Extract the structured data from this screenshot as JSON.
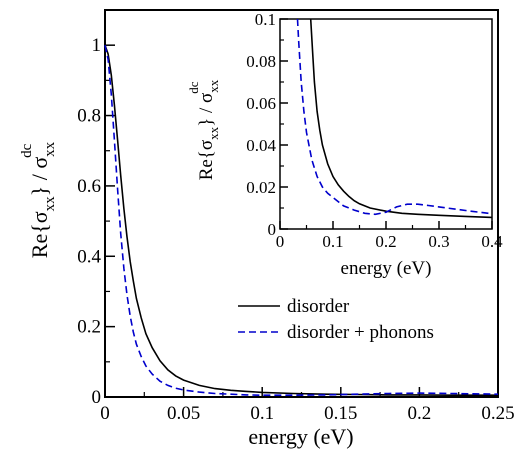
{
  "chart_data": [
    {
      "type": "line",
      "title": "",
      "xlabel": "energy (eV)",
      "ylabel": {
        "prefix": "Re{σ",
        "sub": "xx",
        "mid": "} / σ",
        "sub2": "xx",
        "sup": "dc"
      },
      "xlim": [
        0,
        0.25
      ],
      "ylim": [
        0,
        1.1
      ],
      "x_ticks": [
        "0",
        "0.05",
        "0.1",
        "0.15",
        "0.2",
        "0.25"
      ],
      "y_ticks": [
        "0",
        "0.2",
        "0.4",
        "0.6",
        "0.8",
        "1"
      ],
      "grid": false,
      "legend_position": "center-right",
      "series": [
        {
          "name": "disorder",
          "color": "#000000",
          "style": "solid",
          "x": [
            0,
            0.002,
            0.004,
            0.006,
            0.008,
            0.01,
            0.012,
            0.014,
            0.016,
            0.018,
            0.02,
            0.023,
            0.026,
            0.03,
            0.035,
            0.04,
            0.045,
            0.05,
            0.06,
            0.07,
            0.08,
            0.09,
            0.1,
            0.12,
            0.14,
            0.16,
            0.18,
            0.2,
            0.22,
            0.25
          ],
          "y": [
            1.0,
            0.975,
            0.915,
            0.83,
            0.73,
            0.63,
            0.535,
            0.455,
            0.385,
            0.33,
            0.28,
            0.225,
            0.18,
            0.14,
            0.103,
            0.077,
            0.06,
            0.048,
            0.033,
            0.024,
            0.019,
            0.016,
            0.013,
            0.01,
            0.008,
            0.007,
            0.006,
            0.006,
            0.005,
            0.005
          ]
        },
        {
          "name": "disorder + phonons",
          "color": "#0000cc",
          "style": "dashed",
          "x": [
            0,
            0.002,
            0.004,
            0.006,
            0.008,
            0.01,
            0.012,
            0.014,
            0.016,
            0.018,
            0.02,
            0.023,
            0.026,
            0.03,
            0.035,
            0.04,
            0.045,
            0.05,
            0.06,
            0.07,
            0.08,
            0.09,
            0.1,
            0.12,
            0.14,
            0.16,
            0.18,
            0.2,
            0.22,
            0.25
          ],
          "y": [
            1.0,
            0.96,
            0.86,
            0.73,
            0.59,
            0.465,
            0.365,
            0.29,
            0.23,
            0.185,
            0.15,
            0.115,
            0.088,
            0.065,
            0.045,
            0.033,
            0.025,
            0.02,
            0.014,
            0.01,
            0.008,
            0.006,
            0.005,
            0.005,
            0.006,
            0.008,
            0.01,
            0.011,
            0.01,
            0.008
          ]
        }
      ]
    },
    {
      "type": "line",
      "title": "",
      "xlabel": "energy (eV)",
      "ylabel": {
        "prefix": "Re{σ",
        "sub": "xx",
        "mid": "} / σ",
        "sub2": "xx",
        "sup": "dc"
      },
      "xlim": [
        0,
        0.4
      ],
      "ylim": [
        0,
        0.1
      ],
      "x_ticks": [
        "0",
        "0.1",
        "0.2",
        "0.3",
        "0.4"
      ],
      "y_ticks": [
        "0",
        "0.02",
        "0.04",
        "0.06",
        "0.08",
        "0.1"
      ],
      "grid": false,
      "series": [
        {
          "name": "disorder",
          "color": "#000000",
          "style": "solid",
          "x": [
            0.058,
            0.062,
            0.065,
            0.07,
            0.075,
            0.08,
            0.09,
            0.1,
            0.11,
            0.12,
            0.13,
            0.14,
            0.15,
            0.17,
            0.2,
            0.23,
            0.26,
            0.3,
            0.35,
            0.4
          ],
          "y": [
            0.1,
            0.082,
            0.07,
            0.056,
            0.047,
            0.04,
            0.031,
            0.025,
            0.021,
            0.018,
            0.0155,
            0.0135,
            0.012,
            0.01,
            0.0085,
            0.0075,
            0.007,
            0.0065,
            0.006,
            0.0055
          ]
        },
        {
          "name": "disorder + phonons",
          "color": "#0000cc",
          "style": "dashed",
          "x": [
            0.033,
            0.035,
            0.04,
            0.045,
            0.05,
            0.06,
            0.07,
            0.08,
            0.09,
            0.1,
            0.12,
            0.14,
            0.16,
            0.18,
            0.2,
            0.22,
            0.24,
            0.26,
            0.28,
            0.3,
            0.33,
            0.36,
            0.4
          ],
          "y": [
            0.1,
            0.09,
            0.07,
            0.056,
            0.046,
            0.033,
            0.025,
            0.02,
            0.017,
            0.015,
            0.011,
            0.009,
            0.0075,
            0.007,
            0.008,
            0.0105,
            0.0118,
            0.0118,
            0.0112,
            0.0105,
            0.0095,
            0.0085,
            0.0073
          ]
        }
      ]
    }
  ]
}
